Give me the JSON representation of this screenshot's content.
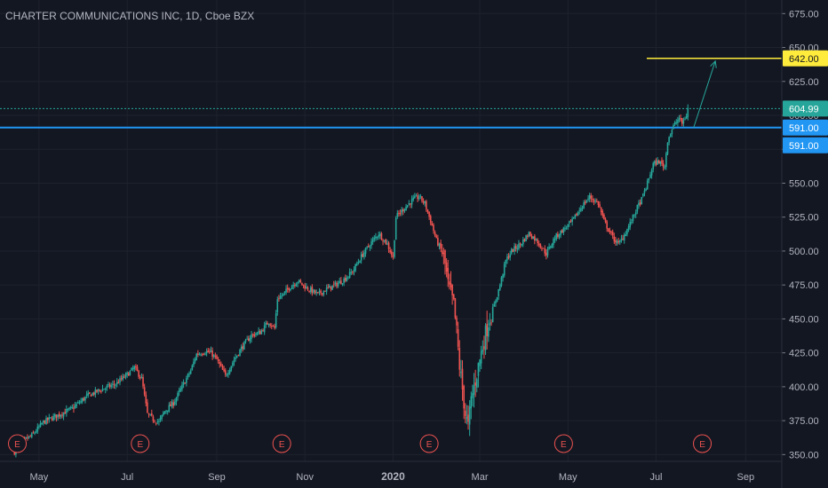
{
  "chart_data": {
    "type": "candlestick",
    "title": "CHARTER COMMUNICATIONS INC, 1D, Cboe BZX",
    "ylim": [
      345,
      685
    ],
    "y_ticks": [
      350,
      375,
      400,
      425,
      450,
      475,
      500,
      525,
      550,
      575,
      600,
      625,
      650,
      675
    ],
    "y_tick_labels": [
      "350.00",
      "375.00",
      "400.00",
      "425.00",
      "450.00",
      "475.00",
      "500.00",
      "525.00",
      "550.00",
      "575.00",
      "600.00",
      "625.00",
      "650.00",
      "675.00"
    ],
    "x_labels": [
      "May",
      "Jul",
      "Sep",
      "Nov",
      "2020",
      "Mar",
      "May",
      "Jul",
      "Sep"
    ],
    "x_label_days": [
      17,
      78,
      140,
      201,
      262,
      322,
      383,
      444,
      506
    ],
    "x_days_range": [
      -10,
      531
    ],
    "close_series_keypoints": [
      [
        0,
        352
      ],
      [
        6,
        360
      ],
      [
        12,
        364
      ],
      [
        20,
        374
      ],
      [
        30,
        379
      ],
      [
        40,
        384
      ],
      [
        50,
        393
      ],
      [
        60,
        398
      ],
      [
        70,
        402
      ],
      [
        78,
        409
      ],
      [
        83,
        414
      ],
      [
        88,
        406
      ],
      [
        92,
        380
      ],
      [
        96,
        376
      ],
      [
        100,
        374
      ],
      [
        104,
        382
      ],
      [
        110,
        388
      ],
      [
        116,
        400
      ],
      [
        122,
        412
      ],
      [
        126,
        424
      ],
      [
        132,
        426
      ],
      [
        136,
        425
      ],
      [
        140,
        420
      ],
      [
        146,
        408
      ],
      [
        152,
        420
      ],
      [
        158,
        430
      ],
      [
        164,
        438
      ],
      [
        170,
        440
      ],
      [
        176,
        448
      ],
      [
        180,
        443
      ],
      [
        182,
        465
      ],
      [
        186,
        468
      ],
      [
        190,
        473
      ],
      [
        196,
        478
      ],
      [
        202,
        473
      ],
      [
        210,
        468
      ],
      [
        216,
        472
      ],
      [
        222,
        475
      ],
      [
        228,
        479
      ],
      [
        234,
        485
      ],
      [
        240,
        496
      ],
      [
        246,
        505
      ],
      [
        252,
        513
      ],
      [
        258,
        505
      ],
      [
        262,
        495
      ],
      [
        264,
        525
      ],
      [
        270,
        532
      ],
      [
        276,
        538
      ],
      [
        280,
        540
      ],
      [
        284,
        535
      ],
      [
        288,
        522
      ],
      [
        292,
        508
      ],
      [
        296,
        499
      ],
      [
        298,
        490
      ],
      [
        300,
        475
      ],
      [
        304,
        460
      ],
      [
        306,
        440
      ],
      [
        308,
        415
      ],
      [
        310,
        398
      ],
      [
        312,
        380
      ],
      [
        314,
        370
      ],
      [
        316,
        390
      ],
      [
        320,
        410
      ],
      [
        324,
        430
      ],
      [
        328,
        448
      ],
      [
        332,
        460
      ],
      [
        336,
        475
      ],
      [
        340,
        493
      ],
      [
        344,
        500
      ],
      [
        350,
        505
      ],
      [
        356,
        513
      ],
      [
        362,
        507
      ],
      [
        368,
        498
      ],
      [
        374,
        510
      ],
      [
        380,
        516
      ],
      [
        386,
        522
      ],
      [
        392,
        532
      ],
      [
        398,
        540
      ],
      [
        404,
        535
      ],
      [
        408,
        522
      ],
      [
        414,
        510
      ],
      [
        418,
        505
      ],
      [
        422,
        512
      ],
      [
        426,
        520
      ],
      [
        430,
        530
      ],
      [
        434,
        538
      ],
      [
        438,
        550
      ],
      [
        442,
        564
      ],
      [
        446,
        566
      ],
      [
        450,
        562
      ],
      [
        452,
        582
      ],
      [
        456,
        592
      ],
      [
        460,
        598
      ],
      [
        462,
        594
      ],
      [
        465,
        600
      ],
      [
        466,
        605
      ]
    ],
    "earnings_markers": {
      "label": "E",
      "days": [
        2,
        87,
        185,
        287,
        380,
        476
      ]
    },
    "price_lines": [
      {
        "value": 604.99,
        "label": "604.99",
        "style": "dotted",
        "color": "#26a69a"
      },
      {
        "value": 591.0,
        "label": "591.00",
        "style": "solid",
        "color": "#2196f3"
      },
      {
        "value": 642.0,
        "label": "642.00",
        "style": "solid",
        "color": "#ffeb3b"
      }
    ],
    "second_label": {
      "value": 591.0,
      "label": "591.00"
    },
    "colors": {
      "up": "#26a69a",
      "down": "#ef5350",
      "background": "#131722",
      "grid": "#1e222d",
      "axis_text": "#b2b5be"
    },
    "arrow": {
      "from": [
        470,
        591
      ],
      "to": [
        485,
        640
      ]
    }
  }
}
